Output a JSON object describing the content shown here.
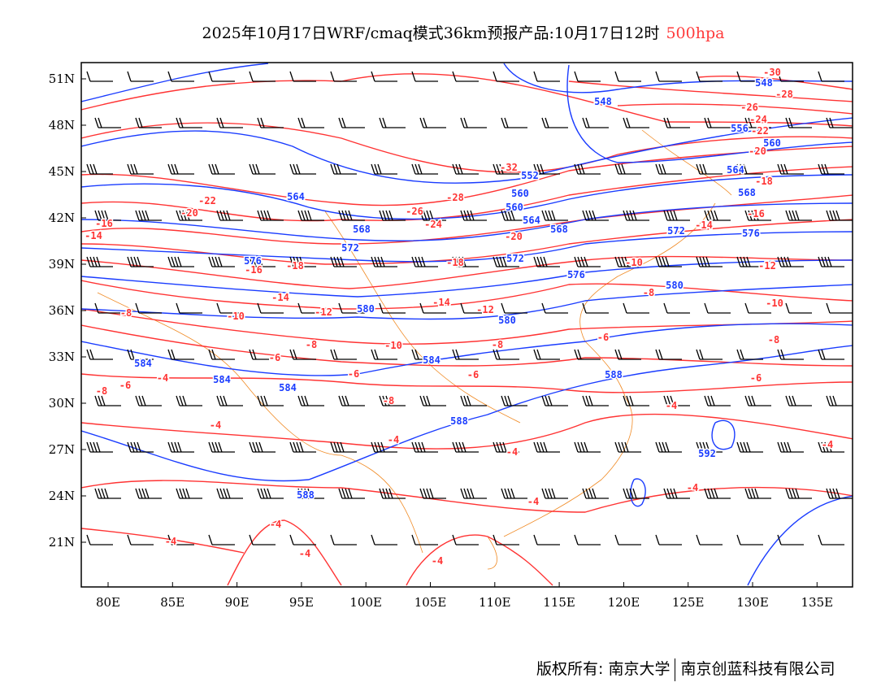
{
  "title": {
    "main": "2025年10月17日WRF/cmaq模式36km预报产品:10月17日12时",
    "level": "500hpa"
  },
  "axes": {
    "lon_ticks": [
      "80E",
      "85E",
      "90E",
      "95E",
      "100E",
      "105E",
      "110E",
      "115E",
      "120E",
      "125E",
      "130E",
      "135E"
    ],
    "lat_ticks": [
      "51N",
      "48N",
      "45N",
      "42N",
      "39N",
      "36N",
      "33N",
      "30N",
      "27N",
      "24N",
      "21N"
    ]
  },
  "colors": {
    "temperature": "#ff3333",
    "height": "#1a3cff",
    "coast": "#f08a24",
    "wind": "#000000",
    "level_text": "#ff3b3b"
  },
  "temperature_labels": [
    "-30",
    "-28",
    "-26",
    "-24",
    "-22",
    "-20",
    "-32",
    "-28",
    "-26",
    "-24",
    "-22",
    "-20",
    "-16",
    "-14",
    "-20",
    "-18",
    "-18",
    "-16",
    "-14",
    "-12",
    "-10",
    "-14",
    "-12",
    "-10",
    "-8",
    "-8",
    "-8",
    "-6",
    "-6",
    "-6",
    "-8",
    "-8",
    "-6",
    "-4",
    "-4",
    "-4",
    "-4",
    "-4",
    "-4",
    "-4",
    "-4",
    "-4",
    "-4",
    "-4",
    "-4",
    "-10",
    "-8",
    "-6",
    "-14",
    "-16",
    "-18",
    "-12",
    "-10",
    "-8",
    "-6"
  ],
  "height_labels": [
    "548",
    "548",
    "552",
    "556",
    "560",
    "560",
    "560",
    "564",
    "564",
    "564",
    "568",
    "568",
    "568",
    "572",
    "572",
    "572",
    "576",
    "576",
    "576",
    "580",
    "580",
    "580",
    "584",
    "584",
    "584",
    "584",
    "588",
    "588",
    "588",
    "592"
  ],
  "footer": {
    "owner": "版权所有: 南京大学",
    "company": "南京创蓝科技有限公司"
  }
}
